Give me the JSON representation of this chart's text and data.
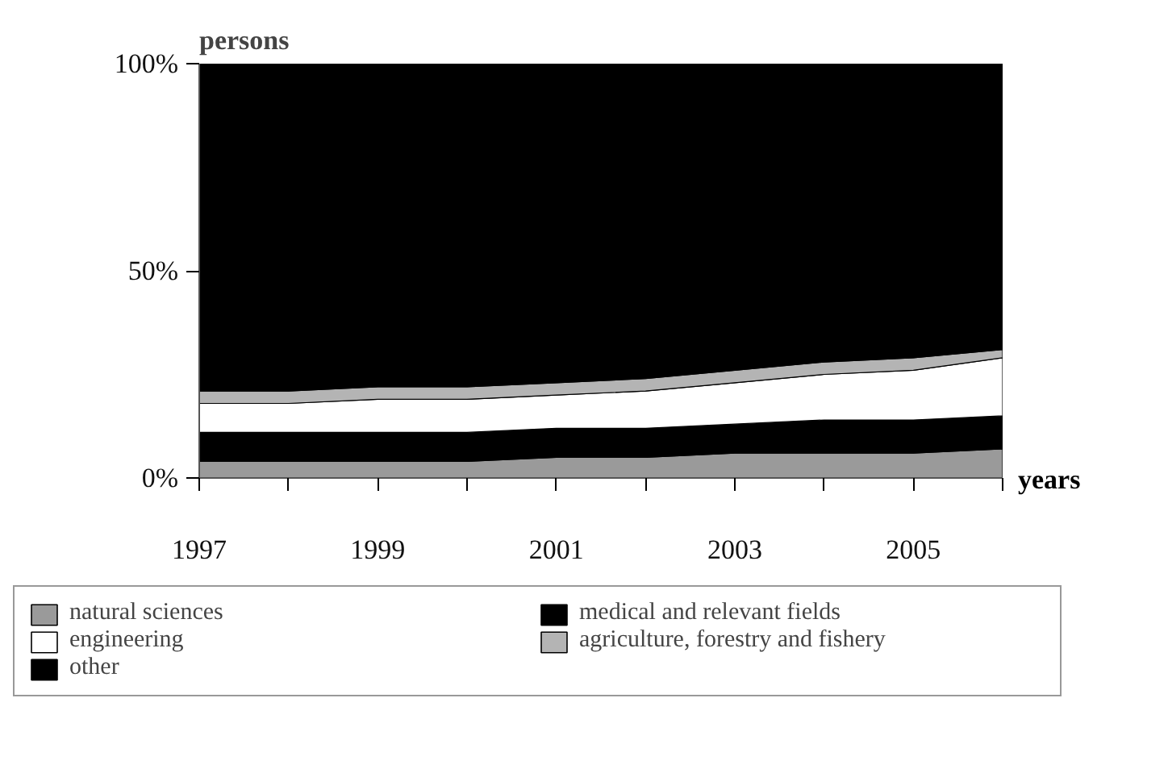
{
  "chart_data": {
    "type": "area",
    "stacked": true,
    "xlabel": "years",
    "ylabel": "persons",
    "x": [
      1997,
      1998,
      1999,
      2000,
      2001,
      2002,
      2003,
      2004,
      2005,
      2006
    ],
    "xlim": [
      1997,
      2006
    ],
    "xticks": [
      {
        "value": 1997,
        "label": "1997"
      },
      {
        "value": 1998,
        "label": null
      },
      {
        "value": 1999,
        "label": "1999"
      },
      {
        "value": 2000,
        "label": null
      },
      {
        "value": 2001,
        "label": "2001"
      },
      {
        "value": 2002,
        "label": null
      },
      {
        "value": 2003,
        "label": "2003"
      },
      {
        "value": 2004,
        "label": null
      },
      {
        "value": 2005,
        "label": "2005"
      },
      {
        "value": 2006,
        "label": null
      }
    ],
    "ylim": [
      0,
      100
    ],
    "yticks": [
      {
        "value": 0,
        "label": "0%"
      },
      {
        "value": 50,
        "label": "50%"
      },
      {
        "value": 100,
        "label": "100%"
      }
    ],
    "legend": "bottom",
    "series": [
      {
        "name": "natural sciences",
        "color": "#9a9a9a",
        "values": [
          4,
          4,
          4,
          4,
          5,
          5,
          6,
          6,
          6,
          7
        ]
      },
      {
        "name": "medical and relevant fields",
        "color": "#000000",
        "values": [
          7,
          7,
          7,
          7,
          7,
          7,
          7,
          8,
          8,
          8
        ]
      },
      {
        "name": "engineering",
        "color": "#ffffff",
        "values": [
          7,
          7,
          8,
          8,
          8,
          9,
          10,
          11,
          12,
          14
        ]
      },
      {
        "name": "agriculture, forestry and fishery",
        "color": "#b4b4b4",
        "values": [
          3,
          3,
          3,
          3,
          3,
          3,
          3,
          3,
          3,
          2
        ]
      },
      {
        "name": "other",
        "color": "#000000",
        "values": [
          79,
          79,
          78,
          78,
          77,
          76,
          74,
          72,
          71,
          69
        ]
      }
    ]
  }
}
